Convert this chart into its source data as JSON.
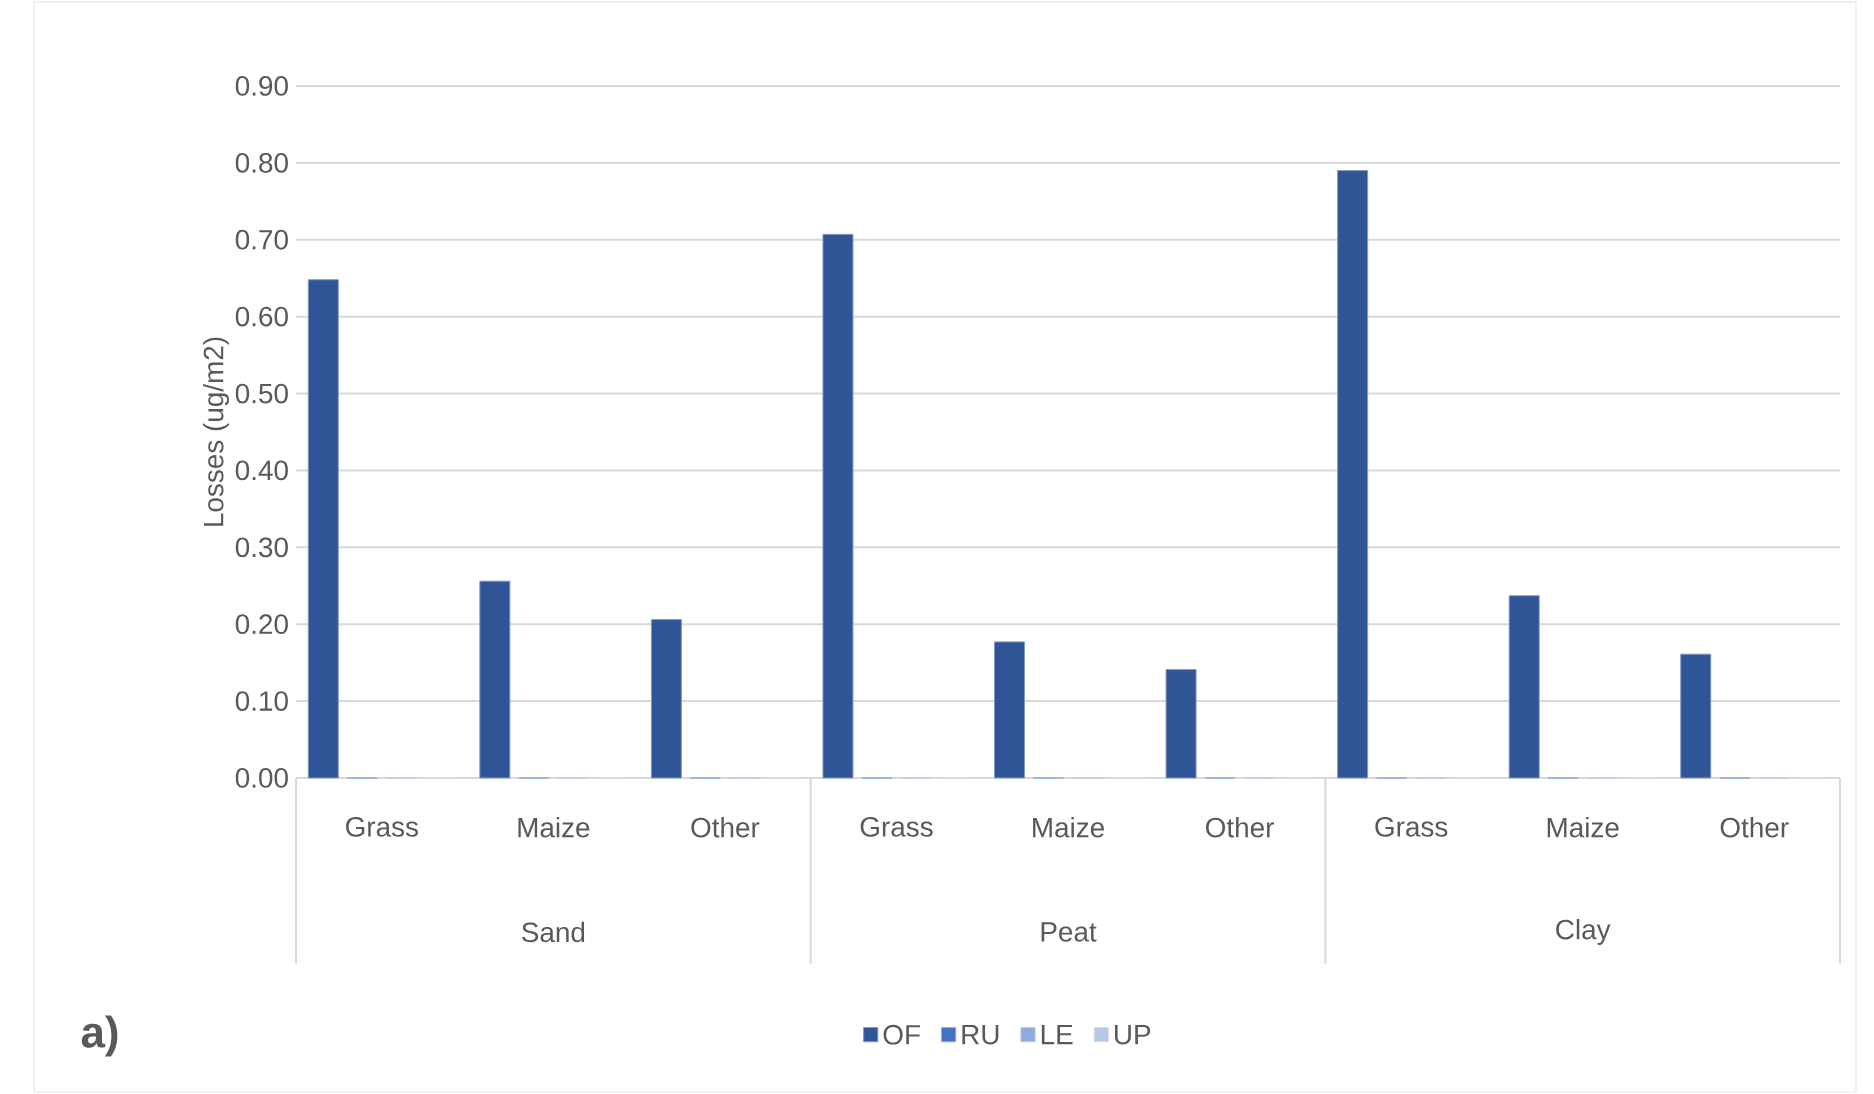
{
  "chart_data": {
    "type": "bar",
    "ylabel": "Losses (ug/m2)",
    "categories": [
      "Grass",
      "Maize",
      "Other",
      "Grass",
      "Maize",
      "Other",
      "Grass",
      "Maize",
      "Other"
    ],
    "series": [
      {
        "name": "OF",
        "color": "#2f5597",
        "values": [
          0.648,
          0.256,
          0.206,
          0.707,
          0.177,
          0.141,
          0.79,
          0.237,
          0.161
        ]
      },
      {
        "name": "RU",
        "color": "#4472c4",
        "values": [
          0,
          0,
          0,
          0,
          0,
          0,
          0,
          0,
          0
        ]
      },
      {
        "name": "LE",
        "color": "#8faadc",
        "values": [
          0,
          0,
          0,
          0,
          0,
          0,
          0,
          0,
          0
        ]
      },
      {
        "name": "UP",
        "color": "#b4c7e7",
        "values": [
          0,
          0,
          0,
          0,
          0,
          0,
          0,
          0,
          0
        ]
      }
    ],
    "ylim": [
      0,
      0.9
    ],
    "yticks": [
      {
        "value": 0,
        "label": "0.00"
      },
      {
        "value": 0.1,
        "label": "0.10"
      },
      {
        "value": 0.2,
        "label": "0.20"
      },
      {
        "value": 0.3,
        "label": "0.30"
      },
      {
        "value": 0.4,
        "label": "0.40"
      },
      {
        "value": 0.5,
        "label": "0.50"
      },
      {
        "value": 0.6,
        "label": "0.60"
      },
      {
        "value": 0.7,
        "label": "0.70"
      },
      {
        "value": 0.8,
        "label": "0.80"
      },
      {
        "value": 0.9,
        "label": "0.90"
      }
    ],
    "grid": "y",
    "legend": "bottom",
    "annotations": [
      "Sand",
      "Peat",
      "Clay",
      "a)"
    ]
  }
}
